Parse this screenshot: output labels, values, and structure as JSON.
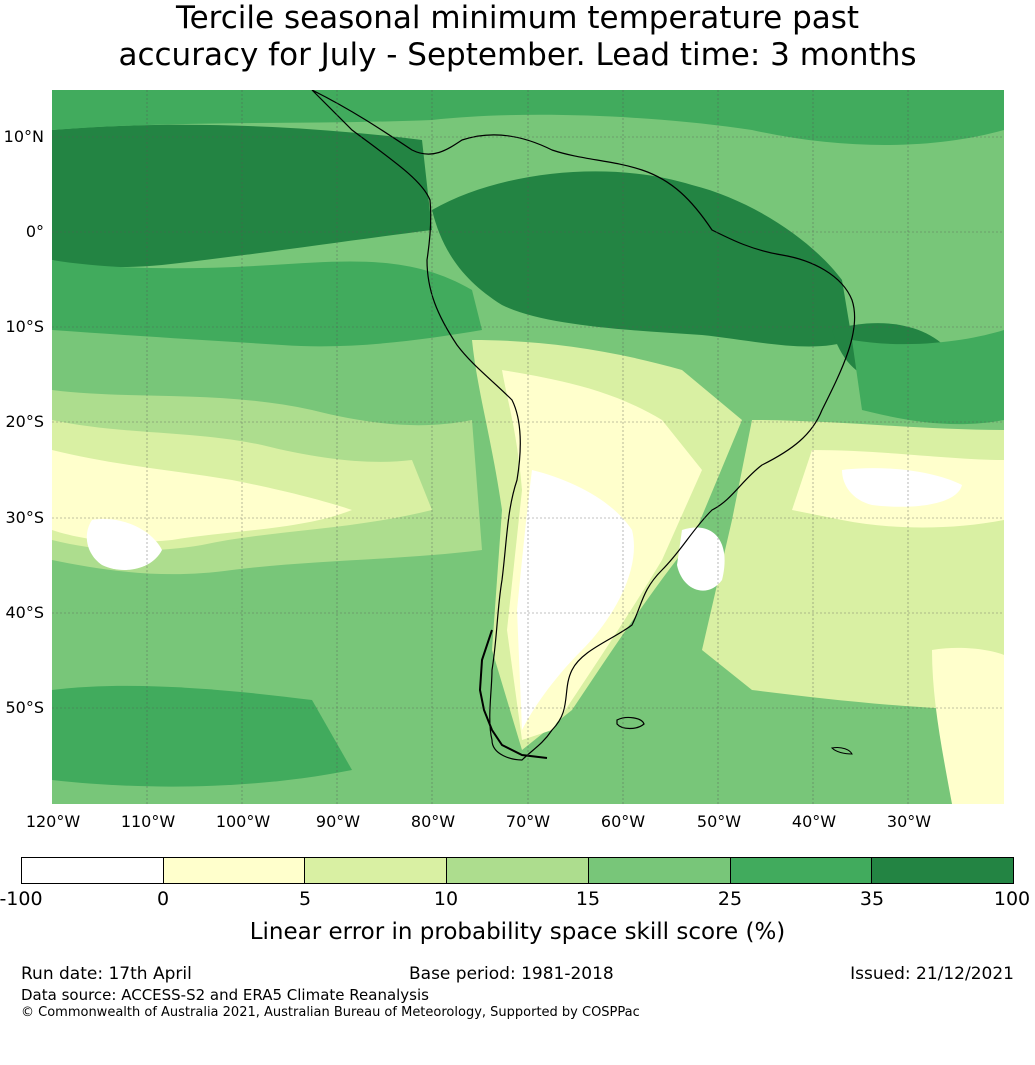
{
  "title_line1": "Tercile seasonal minimum temperature past",
  "title_line2": "accuracy for July - September. Lead time: 3 months",
  "map": {
    "projection": "Plate Carree",
    "extent_lon": [
      -120,
      -20
    ],
    "extent_lat": [
      -60,
      15
    ],
    "gridlines": true,
    "lat_labels": [
      "10°N",
      "0°",
      "10°S",
      "20°S",
      "30°S",
      "40°S",
      "50°S"
    ],
    "lon_labels": [
      "120°W",
      "110°W",
      "100°W",
      "90°W",
      "80°W",
      "70°W",
      "60°W",
      "50°W",
      "40°W",
      "30°W"
    ]
  },
  "colorbar": {
    "label": "Linear error in probability space skill score (%)",
    "ticks": [
      "-100",
      "0",
      "5",
      "10",
      "15",
      "25",
      "35",
      "100"
    ],
    "bins": [
      {
        "range": "-100 to 0",
        "color": "#ffffff"
      },
      {
        "range": "0 to 5",
        "color": "#ffffcc"
      },
      {
        "range": "5 to 10",
        "color": "#d9f0a3"
      },
      {
        "range": "10 to 15",
        "color": "#addd8e"
      },
      {
        "range": "15 to 25",
        "color": "#78c679"
      },
      {
        "range": "25 to 35",
        "color": "#41ab5d"
      },
      {
        "range": "35 to 100",
        "color": "#238443"
      }
    ]
  },
  "footer": {
    "run_date": "Run date: 17th April",
    "base_period": "Base period: 1981-2018",
    "issued": "Issued: 21/12/2021",
    "data_source": "Data source: ACCESS-S2 and ERA5 Climate Reanalysis",
    "copyright": "© Commonwealth of Australia 2021, Australian Bureau of Meteorology, Supported by COSPPac"
  }
}
